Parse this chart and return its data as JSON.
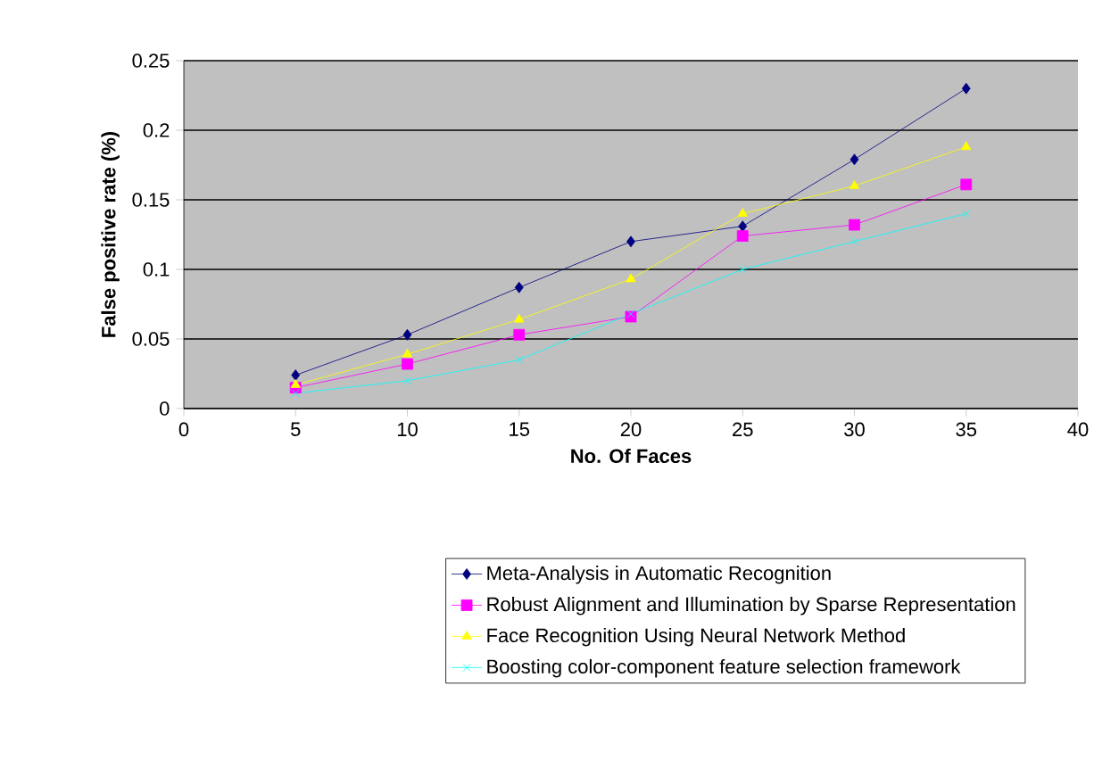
{
  "chart_data": {
    "type": "line",
    "xlabel": "No. Of Faces",
    "ylabel": "False positive rate (%)",
    "x": [
      5,
      10,
      15,
      20,
      25,
      30,
      35
    ],
    "xlim": [
      0,
      40
    ],
    "xticks": [
      0,
      5,
      10,
      15,
      20,
      25,
      30,
      35,
      40
    ],
    "ylim": [
      0,
      0.25
    ],
    "yticks": [
      0,
      0.05,
      0.1,
      0.15,
      0.2,
      0.25
    ],
    "grid": "y",
    "legend": "bottom",
    "line_style": "solid",
    "series": [
      {
        "name": "Meta-Analysis in Automatic Recognition",
        "color": "#000080",
        "marker": "diamond",
        "values": [
          0.024,
          0.053,
          0.087,
          0.12,
          0.131,
          0.179,
          0.23
        ]
      },
      {
        "name": "Robust Alignment and Illumination by Sparse Representation",
        "color": "#ff00ff",
        "marker": "square",
        "values": [
          0.015,
          0.032,
          0.053,
          0.066,
          0.124,
          0.132,
          0.161
        ]
      },
      {
        "name": "Face Recognition Using Neural Network Method",
        "color": "#ffff00",
        "marker": "triangle",
        "values": [
          0.017,
          0.039,
          0.064,
          0.093,
          0.14,
          0.16,
          0.188
        ]
      },
      {
        "name": "Boosting color-component feature selection framework",
        "color": "#00ffff",
        "marker": "cross",
        "values": [
          0.011,
          0.02,
          0.035,
          0.068,
          0.1,
          0.12,
          0.14
        ]
      }
    ]
  }
}
